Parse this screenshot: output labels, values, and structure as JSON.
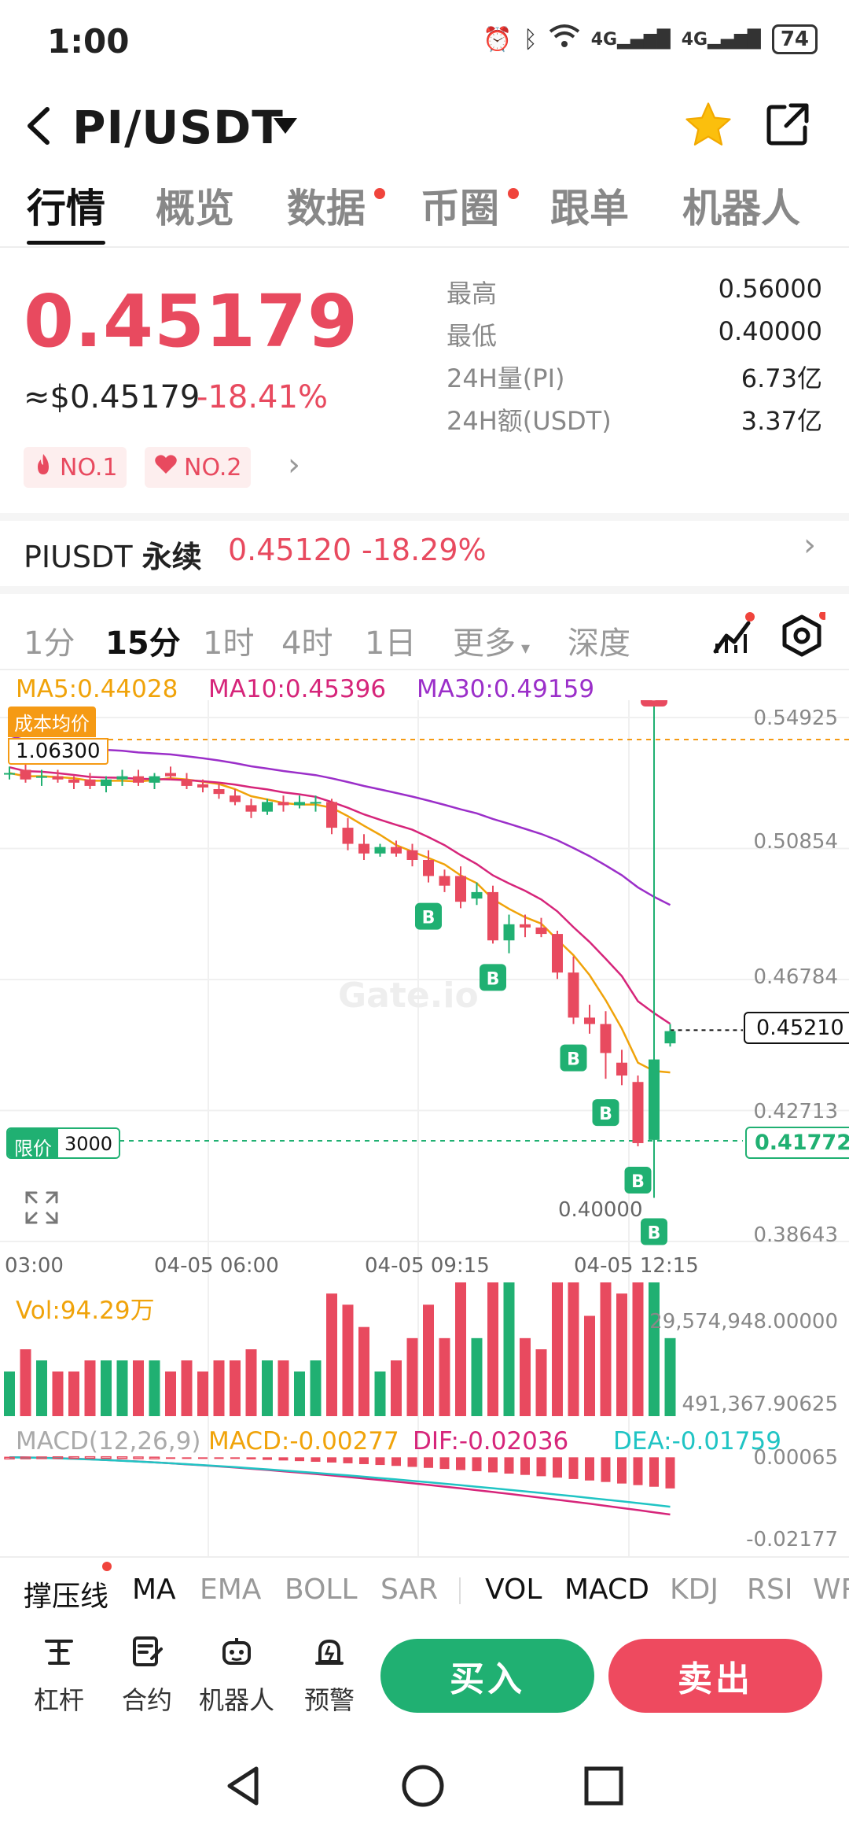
{
  "status_bar": {
    "time": "1:00",
    "network_1": "4G",
    "network_2": "4G",
    "battery": "74"
  },
  "header": {
    "pair": "PI/USDT"
  },
  "tabs": [
    {
      "label": "行情",
      "active": true,
      "dot": false
    },
    {
      "label": "概览",
      "active": false,
      "dot": false
    },
    {
      "label": "数据",
      "active": false,
      "dot": true
    },
    {
      "label": "币圈",
      "active": false,
      "dot": true
    },
    {
      "label": "跟单",
      "active": false,
      "dot": false
    },
    {
      "label": "机器人",
      "active": false,
      "dot": false
    }
  ],
  "price": {
    "last": "0.45179",
    "usd": "≈$0.45179",
    "change": "-18.41%"
  },
  "stats": [
    {
      "label": "最高",
      "value": "0.56000"
    },
    {
      "label": "最低",
      "value": "0.40000"
    },
    {
      "label": "24H量(PI)",
      "value": "6.73亿"
    },
    {
      "label": "24H额(USDT)",
      "value": "3.37亿"
    }
  ],
  "badges": {
    "first": "NO.1",
    "second": "NO.2"
  },
  "perpetual": {
    "symbol": "PIUSDT",
    "type": "永续",
    "price": "0.45120",
    "change": "-18.29%"
  },
  "timeframes": [
    {
      "label": "1分",
      "active": false
    },
    {
      "label": "15分",
      "active": true
    },
    {
      "label": "1时",
      "active": false
    },
    {
      "label": "4时",
      "active": false
    },
    {
      "label": "1日",
      "active": false
    },
    {
      "label": "更多",
      "active": false
    },
    {
      "label": "深度",
      "active": false
    }
  ],
  "ma": {
    "ma5": "MA5:0.44028",
    "ma10": "MA10:0.45396",
    "ma30": "MA30:0.49159"
  },
  "cost_label": {
    "title": "成本均价",
    "value": "1.06300"
  },
  "limit_label": {
    "title": "限价",
    "value": "3000",
    "price": "0.41772"
  },
  "current_price_tag": "0.45210",
  "low_label": "0.40000",
  "watermark": "Gate.io",
  "colors": {
    "up": "#20b072",
    "down": "#e84a5f",
    "ma5": "#f0a30a",
    "ma10": "#d6257a",
    "ma30": "#9b2fc9",
    "dif": "#d6257a",
    "dea": "#20c4c4"
  },
  "vol_title": "Vol:94.29万",
  "vol_axis": {
    "top": "29,574,948.00000",
    "bottom": "491,367.90625"
  },
  "macd_legend": {
    "name": "MACD(12,26,9)",
    "macd": "MACD:-0.00277",
    "dif": "DIF:-0.02036",
    "dea": "DEA:-0.01759"
  },
  "macd_axis": {
    "top": "0.00065",
    "bottom": "-0.02177"
  },
  "indicators": [
    "撑压线",
    "MA",
    "EMA",
    "BOLL",
    "SAR",
    "VOL",
    "MACD",
    "KDJ",
    "RSI",
    "WR"
  ],
  "tools": [
    {
      "label": "杠杆",
      "icon": "leverage-icon"
    },
    {
      "label": "合约",
      "icon": "contract-icon"
    },
    {
      "label": "机器人",
      "icon": "robot-icon"
    },
    {
      "label": "预警",
      "icon": "alert-icon"
    }
  ],
  "actions": {
    "buy": "买入",
    "sell": "卖出"
  },
  "chart_data": {
    "type": "candlestick",
    "interval": "15分",
    "x_ticks": [
      "03:00",
      "04-05 06:00",
      "04-05 09:15",
      "04-05 12:15"
    ],
    "y_ticks": [
      "0.54925",
      "0.50854",
      "0.46784",
      "0.42713",
      "0.38643"
    ],
    "ylim": [
      0.38643,
      0.54925
    ],
    "candles": [
      {
        "o": 0.532,
        "h": 0.534,
        "l": 0.53,
        "c": 0.532
      },
      {
        "o": 0.533,
        "h": 0.535,
        "l": 0.529,
        "c": 0.53
      },
      {
        "o": 0.531,
        "h": 0.533,
        "l": 0.528,
        "c": 0.531
      },
      {
        "o": 0.531,
        "h": 0.533,
        "l": 0.529,
        "c": 0.53
      },
      {
        "o": 0.53,
        "h": 0.531,
        "l": 0.527,
        "c": 0.529
      },
      {
        "o": 0.53,
        "h": 0.532,
        "l": 0.527,
        "c": 0.528
      },
      {
        "o": 0.528,
        "h": 0.531,
        "l": 0.526,
        "c": 0.53
      },
      {
        "o": 0.53,
        "h": 0.533,
        "l": 0.528,
        "c": 0.531
      },
      {
        "o": 0.531,
        "h": 0.533,
        "l": 0.528,
        "c": 0.529
      },
      {
        "o": 0.529,
        "h": 0.532,
        "l": 0.527,
        "c": 0.531
      },
      {
        "o": 0.532,
        "h": 0.534,
        "l": 0.53,
        "c": 0.531
      },
      {
        "o": 0.53,
        "h": 0.532,
        "l": 0.527,
        "c": 0.528
      },
      {
        "o": 0.5285,
        "h": 0.53,
        "l": 0.526,
        "c": 0.5275
      },
      {
        "o": 0.527,
        "h": 0.529,
        "l": 0.524,
        "c": 0.5255
      },
      {
        "o": 0.525,
        "h": 0.527,
        "l": 0.522,
        "c": 0.523
      },
      {
        "o": 0.522,
        "h": 0.524,
        "l": 0.518,
        "c": 0.52
      },
      {
        "o": 0.52,
        "h": 0.524,
        "l": 0.519,
        "c": 0.523
      },
      {
        "o": 0.523,
        "h": 0.525,
        "l": 0.52,
        "c": 0.522
      },
      {
        "o": 0.522,
        "h": 0.525,
        "l": 0.521,
        "c": 0.523
      },
      {
        "o": 0.523,
        "h": 0.525,
        "l": 0.52,
        "c": 0.523
      },
      {
        "o": 0.523,
        "h": 0.524,
        "l": 0.513,
        "c": 0.515
      },
      {
        "o": 0.515,
        "h": 0.518,
        "l": 0.508,
        "c": 0.51
      },
      {
        "o": 0.51,
        "h": 0.513,
        "l": 0.505,
        "c": 0.507
      },
      {
        "o": 0.507,
        "h": 0.51,
        "l": 0.506,
        "c": 0.509
      },
      {
        "o": 0.509,
        "h": 0.511,
        "l": 0.506,
        "c": 0.507
      },
      {
        "o": 0.508,
        "h": 0.51,
        "l": 0.503,
        "c": 0.505
      },
      {
        "o": 0.505,
        "h": 0.508,
        "l": 0.498,
        "c": 0.5
      },
      {
        "o": 0.5,
        "h": 0.502,
        "l": 0.495,
        "c": 0.497
      },
      {
        "o": 0.5,
        "h": 0.503,
        "l": 0.49,
        "c": 0.492
      },
      {
        "o": 0.493,
        "h": 0.498,
        "l": 0.491,
        "c": 0.495
      },
      {
        "o": 0.495,
        "h": 0.497,
        "l": 0.479,
        "c": 0.48
      },
      {
        "o": 0.48,
        "h": 0.488,
        "l": 0.476,
        "c": 0.485
      },
      {
        "o": 0.485,
        "h": 0.488,
        "l": 0.481,
        "c": 0.484
      },
      {
        "o": 0.484,
        "h": 0.487,
        "l": 0.481,
        "c": 0.482
      },
      {
        "o": 0.482,
        "h": 0.483,
        "l": 0.468,
        "c": 0.47
      },
      {
        "o": 0.47,
        "h": 0.475,
        "l": 0.454,
        "c": 0.456
      },
      {
        "o": 0.456,
        "h": 0.46,
        "l": 0.451,
        "c": 0.454
      },
      {
        "o": 0.454,
        "h": 0.458,
        "l": 0.437,
        "c": 0.445
      },
      {
        "o": 0.442,
        "h": 0.446,
        "l": 0.435,
        "c": 0.438
      },
      {
        "o": 0.436,
        "h": 0.438,
        "l": 0.416,
        "c": 0.417
      },
      {
        "o": 0.418,
        "h": 0.56,
        "l": 0.4,
        "c": 0.443
      },
      {
        "o": 0.448,
        "h": 0.454,
        "l": 0.447,
        "c": 0.4518
      }
    ],
    "markers": [
      {
        "i": 26,
        "type": "B",
        "pos": "below"
      },
      {
        "i": 30,
        "type": "B",
        "pos": "below"
      },
      {
        "i": 35,
        "type": "B",
        "pos": "below"
      },
      {
        "i": 37,
        "type": "B",
        "pos": "below"
      },
      {
        "i": 39,
        "type": "B",
        "pos": "below"
      },
      {
        "i": 40,
        "type": "B",
        "pos": "below"
      },
      {
        "i": 40,
        "type": "S",
        "pos": "above"
      }
    ]
  }
}
